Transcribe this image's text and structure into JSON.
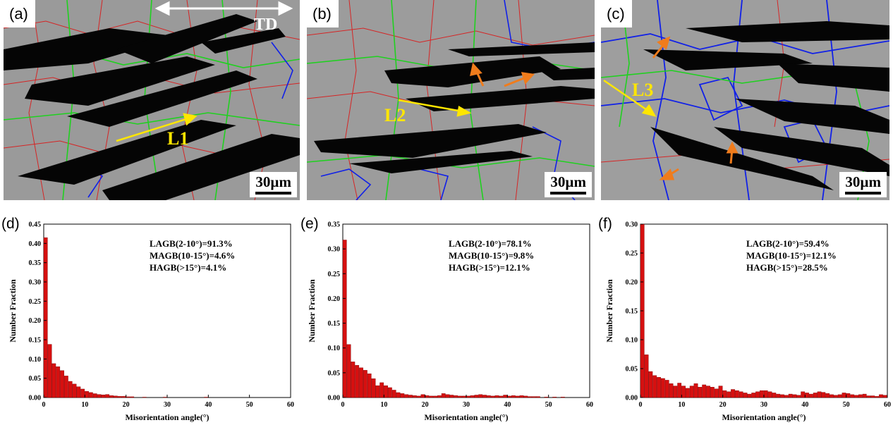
{
  "panels": {
    "a": {
      "label": "(a)",
      "scale": "30µm",
      "line_label": "L1",
      "direction": "TD"
    },
    "b": {
      "label": "(b)",
      "scale": "30µm",
      "line_label": "L2"
    },
    "c": {
      "label": "(c)",
      "scale": "30µm",
      "line_label": "L3"
    }
  },
  "colors": {
    "lagb": "#e01010",
    "magb": "#1fd11f",
    "hagb": "#1020e8",
    "bar": "#d61010",
    "arrow": "#f07c1c",
    "line": "#ffe600"
  },
  "chart_data": [
    {
      "panel_label": "(d)",
      "type": "bar",
      "xlabel": "Misorientation angle(°)",
      "ylabel": "Number Fraction",
      "xlim": [
        0,
        60
      ],
      "ylim": [
        0,
        0.45
      ],
      "xticks": [
        "0",
        "10",
        "20",
        "30",
        "40",
        "50",
        "60"
      ],
      "yticks": [
        "0.00",
        "0.05",
        "0.10",
        "0.15",
        "0.20",
        "0.25",
        "0.30",
        "0.35",
        "0.40",
        "0.45"
      ],
      "annotations": [
        "LAGB(2-10°)=91.3%",
        "MAGB(10-15°)=4.6%",
        "HAGB(>15°)=4.1%"
      ],
      "bin_width": 1,
      "x": [
        1,
        2,
        3,
        4,
        5,
        6,
        7,
        8,
        9,
        10,
        11,
        12,
        13,
        14,
        15,
        16,
        17,
        18,
        19,
        20,
        21,
        22,
        25,
        30,
        40
      ],
      "values": [
        0.415,
        0.138,
        0.088,
        0.08,
        0.07,
        0.056,
        0.042,
        0.035,
        0.028,
        0.022,
        0.016,
        0.013,
        0.01,
        0.008,
        0.007,
        0.008,
        0.005,
        0.004,
        0.003,
        0.003,
        0.002,
        0.002,
        0.001,
        0.001,
        0.001
      ]
    },
    {
      "panel_label": "(e)",
      "type": "bar",
      "xlabel": "Misorientation angle(°)",
      "ylabel": "Number Fraction",
      "xlim": [
        0,
        60
      ],
      "ylim": [
        0,
        0.35
      ],
      "xticks": [
        "0",
        "10",
        "20",
        "30",
        "40",
        "50",
        "60"
      ],
      "yticks": [
        "0.00",
        "0.05",
        "0.10",
        "0.15",
        "0.20",
        "0.25",
        "0.30",
        "0.35"
      ],
      "annotations": [
        "LAGB(2-10°)=78.1%",
        "MAGB(10-15°)=9.8%",
        "HAGB(>15°)=12.1%"
      ],
      "bin_width": 1,
      "x": [
        1,
        2,
        3,
        4,
        5,
        6,
        7,
        8,
        9,
        10,
        11,
        12,
        13,
        14,
        15,
        16,
        17,
        18,
        19,
        20,
        21,
        22,
        23,
        24,
        25,
        26,
        27,
        28,
        29,
        30,
        31,
        32,
        33,
        34,
        35,
        36,
        37,
        38,
        39,
        40,
        41,
        42,
        43,
        44,
        45,
        46,
        47,
        48,
        50,
        52,
        54
      ],
      "values": [
        0.318,
        0.107,
        0.072,
        0.065,
        0.06,
        0.055,
        0.048,
        0.038,
        0.024,
        0.03,
        0.024,
        0.02,
        0.015,
        0.01,
        0.008,
        0.006,
        0.005,
        0.004,
        0.003,
        0.006,
        0.004,
        0.003,
        0.003,
        0.004,
        0.008,
        0.006,
        0.005,
        0.004,
        0.003,
        0.003,
        0.003,
        0.004,
        0.005,
        0.006,
        0.005,
        0.004,
        0.003,
        0.004,
        0.003,
        0.005,
        0.003,
        0.004,
        0.003,
        0.004,
        0.003,
        0.002,
        0.002,
        0.002,
        0.001,
        0.001,
        0.001
      ]
    },
    {
      "panel_label": "(f)",
      "type": "bar",
      "xlabel": "Misorientation angle(°)",
      "ylabel": "Number Fraction",
      "xlim": [
        0,
        60
      ],
      "ylim": [
        0,
        0.3
      ],
      "xticks": [
        "0",
        "10",
        "20",
        "30",
        "40",
        "50",
        "60"
      ],
      "yticks": [
        "0.00",
        "0.05",
        "0.10",
        "0.15",
        "0.20",
        "0.25",
        "0.30"
      ],
      "annotations": [
        "LAGB(2-10°)=59.4%",
        "MAGB(10-15°)=12.1%",
        "HAGB(>15°)=28.5%"
      ],
      "bin_width": 1,
      "x": [
        1,
        2,
        3,
        4,
        5,
        6,
        7,
        8,
        9,
        10,
        11,
        12,
        13,
        14,
        15,
        16,
        17,
        18,
        19,
        20,
        21,
        22,
        23,
        24,
        25,
        26,
        27,
        28,
        29,
        30,
        31,
        32,
        33,
        34,
        35,
        36,
        37,
        38,
        39,
        40,
        41,
        42,
        43,
        44,
        45,
        46,
        47,
        48,
        49,
        50,
        51,
        52,
        53,
        54,
        55,
        56,
        57,
        58,
        59,
        60
      ],
      "values": [
        0.3,
        0.074,
        0.045,
        0.038,
        0.035,
        0.033,
        0.03,
        0.024,
        0.02,
        0.025,
        0.02,
        0.016,
        0.02,
        0.024,
        0.018,
        0.022,
        0.02,
        0.018,
        0.015,
        0.02,
        0.012,
        0.01,
        0.014,
        0.012,
        0.01,
        0.008,
        0.006,
        0.008,
        0.01,
        0.012,
        0.012,
        0.01,
        0.008,
        0.006,
        0.005,
        0.004,
        0.006,
        0.005,
        0.004,
        0.01,
        0.008,
        0.006,
        0.008,
        0.01,
        0.009,
        0.007,
        0.005,
        0.004,
        0.005,
        0.008,
        0.007,
        0.005,
        0.004,
        0.005,
        0.006,
        0.003,
        0.003,
        0.002,
        0.005,
        0.004
      ]
    }
  ]
}
